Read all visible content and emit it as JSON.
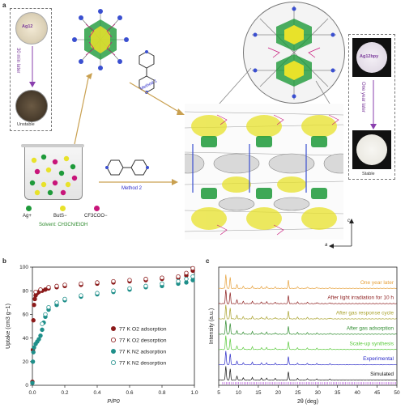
{
  "panel_a": {
    "letter": "a",
    "left_box": {
      "title": "Ag12",
      "arrow_label": "30 min later",
      "status": "Unstable"
    },
    "right_box": {
      "title": "Ag12bpy",
      "arrow_label": "One year later",
      "status": "Stable"
    },
    "method1": "Method 1",
    "method2": "Method 2",
    "legend": {
      "ag": "Ag+",
      "tbs": "ButS−",
      "cf3": "CF3COO−",
      "solvent": "Solvent: CH3CN/EtOH"
    },
    "axes": {
      "c": "c",
      "a": "a"
    },
    "colors": {
      "ag": "#1e9a3a",
      "s": "#e8e22a",
      "cf3": "#c8157a",
      "n": "#3a4fd0",
      "purple": "#8a3fae"
    }
  },
  "panel_b": {
    "letter": "b",
    "chart_data": {
      "type": "scatter",
      "xlabel": "P/P0",
      "ylabel": "Uptake (cm3 g−1)",
      "xlim": [
        0,
        1.0
      ],
      "ylim": [
        0,
        100
      ],
      "xticks": [
        "0.0",
        "0.2",
        "0.4",
        "0.6",
        "0.8",
        "1.0"
      ],
      "yticks": [
        "0",
        "20",
        "40",
        "60",
        "80",
        "100"
      ],
      "series": [
        {
          "name": "77 K O2 adsorption",
          "color": "#8b1a1a",
          "filled": true,
          "x": [
            0.0,
            0.003,
            0.006,
            0.01,
            0.015,
            0.02,
            0.03,
            0.04,
            0.06,
            0.08,
            0.1,
            0.15,
            0.2,
            0.3,
            0.4,
            0.5,
            0.6,
            0.7,
            0.8,
            0.9,
            0.95,
            0.99
          ],
          "y": [
            3,
            30,
            55,
            68,
            73,
            76,
            78,
            79,
            80,
            81,
            82,
            83,
            84,
            85,
            86,
            87,
            88,
            89,
            90,
            91,
            93,
            97
          ]
        },
        {
          "name": "77 K O2 desorption",
          "color": "#8b1a1a",
          "filled": false,
          "x": [
            0.99,
            0.95,
            0.9,
            0.8,
            0.7,
            0.6,
            0.5,
            0.4,
            0.3,
            0.2,
            0.15,
            0.1,
            0.05,
            0.02
          ],
          "y": [
            99,
            95,
            92,
            91,
            90,
            89,
            88,
            87,
            86,
            85,
            84,
            83,
            81,
            79
          ]
        },
        {
          "name": "77 K N2 adsorption",
          "color": "#1f8f8a",
          "filled": true,
          "x": [
            0.0,
            0.003,
            0.006,
            0.01,
            0.02,
            0.03,
            0.04,
            0.05,
            0.06,
            0.07,
            0.08,
            0.1,
            0.15,
            0.2,
            0.3,
            0.4,
            0.5,
            0.6,
            0.7,
            0.8,
            0.9,
            0.95,
            0.99
          ],
          "y": [
            2,
            20,
            28,
            32,
            35,
            37,
            39,
            42,
            47,
            53,
            58,
            64,
            68,
            72,
            75,
            77,
            79,
            81,
            83,
            84,
            86,
            87,
            89
          ]
        },
        {
          "name": "77 K N2 desorption",
          "color": "#1f8f8a",
          "filled": false,
          "x": [
            0.99,
            0.95,
            0.9,
            0.8,
            0.7,
            0.6,
            0.5,
            0.4,
            0.3,
            0.2,
            0.15,
            0.1,
            0.08,
            0.06
          ],
          "y": [
            92,
            90,
            88,
            86,
            84,
            82,
            80,
            78,
            76,
            73,
            70,
            66,
            60,
            52
          ]
        }
      ]
    }
  },
  "panel_c": {
    "letter": "c",
    "chart_data": {
      "type": "line",
      "xlabel": "2θ (deg)",
      "ylabel": "Intensity (a.u.)",
      "xlim": [
        5,
        50
      ],
      "xticks": [
        "5",
        "10",
        "15",
        "20",
        "25",
        "30",
        "35",
        "40",
        "45",
        "50"
      ],
      "series": [
        {
          "name": "One year later",
          "color": "#e6a03a"
        },
        {
          "name": "After light irradiation for 10 h",
          "color": "#8b1a1a"
        },
        {
          "name": "After gas response cycle",
          "color": "#a8a02a"
        },
        {
          "name": "After gas adsorption",
          "color": "#2e8b2e"
        },
        {
          "name": "Scale-up synthesis",
          "color": "#58c93a"
        },
        {
          "name": "Experimental",
          "color": "#2a2ac8"
        },
        {
          "name": "Simulated",
          "color": "#111111"
        }
      ],
      "peaks_2theta": [
        6.8,
        7.9,
        9.6,
        11.2,
        13.5,
        15.8,
        17.1,
        19.3,
        22.6,
        24.9,
        27.4,
        29.8,
        33.1
      ],
      "peak_heights": [
        0.95,
        0.75,
        0.25,
        0.15,
        0.18,
        0.12,
        0.14,
        0.1,
        0.55,
        0.12,
        0.1,
        0.08,
        0.06
      ]
    }
  }
}
